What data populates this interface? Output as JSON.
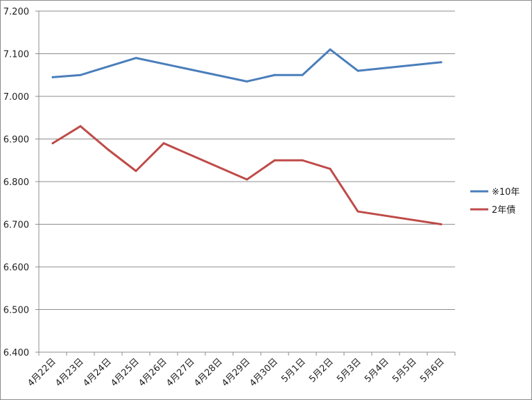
{
  "chart_data": {
    "type": "line",
    "categories": [
      "4月22日",
      "4月23日",
      "4月24日",
      "4月25日",
      "4月26日",
      "4月27日",
      "4月28日",
      "4月29日",
      "4月30日",
      "5月1日",
      "5月2日",
      "5月3日",
      "5月4日",
      "5月5日",
      "5月6日"
    ],
    "x_positions": [
      0.5,
      1.5,
      2.5,
      3.5,
      4.5,
      5.5,
      6.5,
      7.5,
      8.5,
      9.5,
      10.5,
      11.5,
      12.5,
      13.5,
      14.5
    ],
    "series": [
      {
        "name": "※10年",
        "color": "#4a7ebb",
        "points": [
          [
            0.5,
            7.045
          ],
          [
            1.5,
            7.05
          ],
          [
            3.5,
            7.09
          ],
          [
            7.5,
            7.035
          ],
          [
            8.5,
            7.05
          ],
          [
            9.5,
            7.05
          ],
          [
            10.5,
            7.11
          ],
          [
            11.5,
            7.06
          ],
          [
            14.5,
            7.08
          ]
        ]
      },
      {
        "name": "2年債",
        "color": "#be4b48",
        "points": [
          [
            0.5,
            6.89
          ],
          [
            1.5,
            6.93
          ],
          [
            2.5,
            6.875
          ],
          [
            3.5,
            6.825
          ],
          [
            4.5,
            6.89
          ],
          [
            7.5,
            6.805
          ],
          [
            8.5,
            6.85
          ],
          [
            9.5,
            6.85
          ],
          [
            10.5,
            6.83
          ],
          [
            11.5,
            6.73
          ],
          [
            14.5,
            6.7
          ]
        ]
      }
    ],
    "ylim": [
      6.4,
      7.2
    ],
    "y_ticks": [
      "6.400",
      "6.500",
      "6.600",
      "6.700",
      "6.800",
      "6.900",
      "7.000",
      "7.100",
      "7.200"
    ],
    "xlim": [
      0,
      15
    ],
    "grid": "horizontal",
    "legend_position": "right",
    "xlabel": "",
    "ylabel": "",
    "title": ""
  }
}
